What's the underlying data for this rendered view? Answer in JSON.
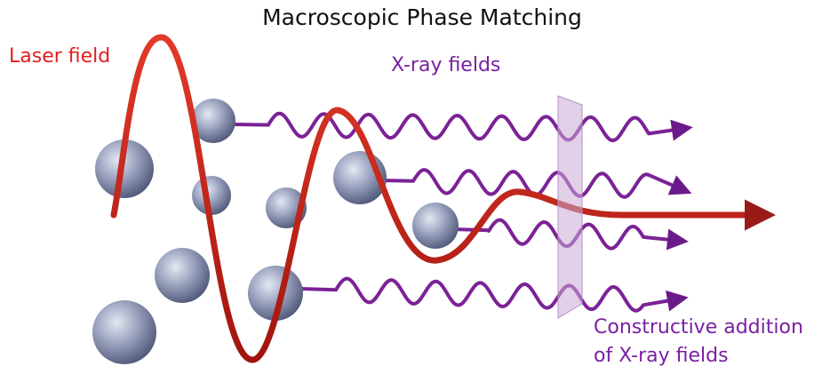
{
  "title": "Macroscopic Phase Matching",
  "labels": {
    "laser": "Laser field",
    "xray": "X-ray fields",
    "constructive": [
      "Constructive addition",
      "of X-ray fields"
    ]
  }
}
